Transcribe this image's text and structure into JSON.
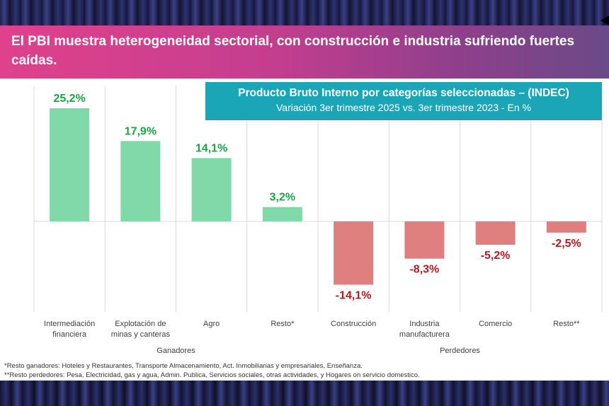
{
  "header": {
    "title": "El PBI muestra heterogeneidad sectorial, con construcción e industria sufriendo fuertes caídas."
  },
  "chart_data": {
    "type": "bar",
    "title": "Producto Bruto Interno por categorías seleccionadas – (INDEC)",
    "subtitle": "Variación 3er trimestre 2025 vs. 3er trimestre 2023 - En %",
    "categories": [
      [
        "Intermediación",
        "financiera"
      ],
      [
        "Explotación de",
        "minas y canteras"
      ],
      [
        "Agro"
      ],
      [
        "Resto*"
      ],
      [
        "Construcción"
      ],
      [
        "Industria",
        "manufacturera"
      ],
      [
        "Comercio"
      ],
      [
        "Resto**"
      ]
    ],
    "values": [
      25.2,
      17.9,
      14.1,
      3.2,
      -14.1,
      -8.3,
      -5.2,
      -2.5
    ],
    "data_labels": [
      "25,2%",
      "17,9%",
      "14,1%",
      "3,2%",
      "-14,1%",
      "-8,3%",
      "-5,2%",
      "-2,5%"
    ],
    "groups": [
      {
        "label": "Ganadores",
        "count": 4
      },
      {
        "label": "Perdedores",
        "count": 4
      }
    ],
    "colors": {
      "positive_bar": "#7fd9a8",
      "negative_bar": "#e07f80",
      "positive_label": "#16a844",
      "negative_label": "#c0141c",
      "grid": "#d9d9d9"
    },
    "ylim": [
      -16,
      27
    ],
    "xlabel": "",
    "ylabel": ""
  },
  "footnotes": [
    "*Resto ganadores: Hoteles y Restaurantes, Transporte  Almacenamiento, Act. Inmobiliarias y empresariales, Enseñanza.",
    "**Resto perdedores: Pesa, Electricidad, gas y agua, Admin. Publica, Servicios sociales, otras actividades, y Hogares on servicio domestico."
  ]
}
